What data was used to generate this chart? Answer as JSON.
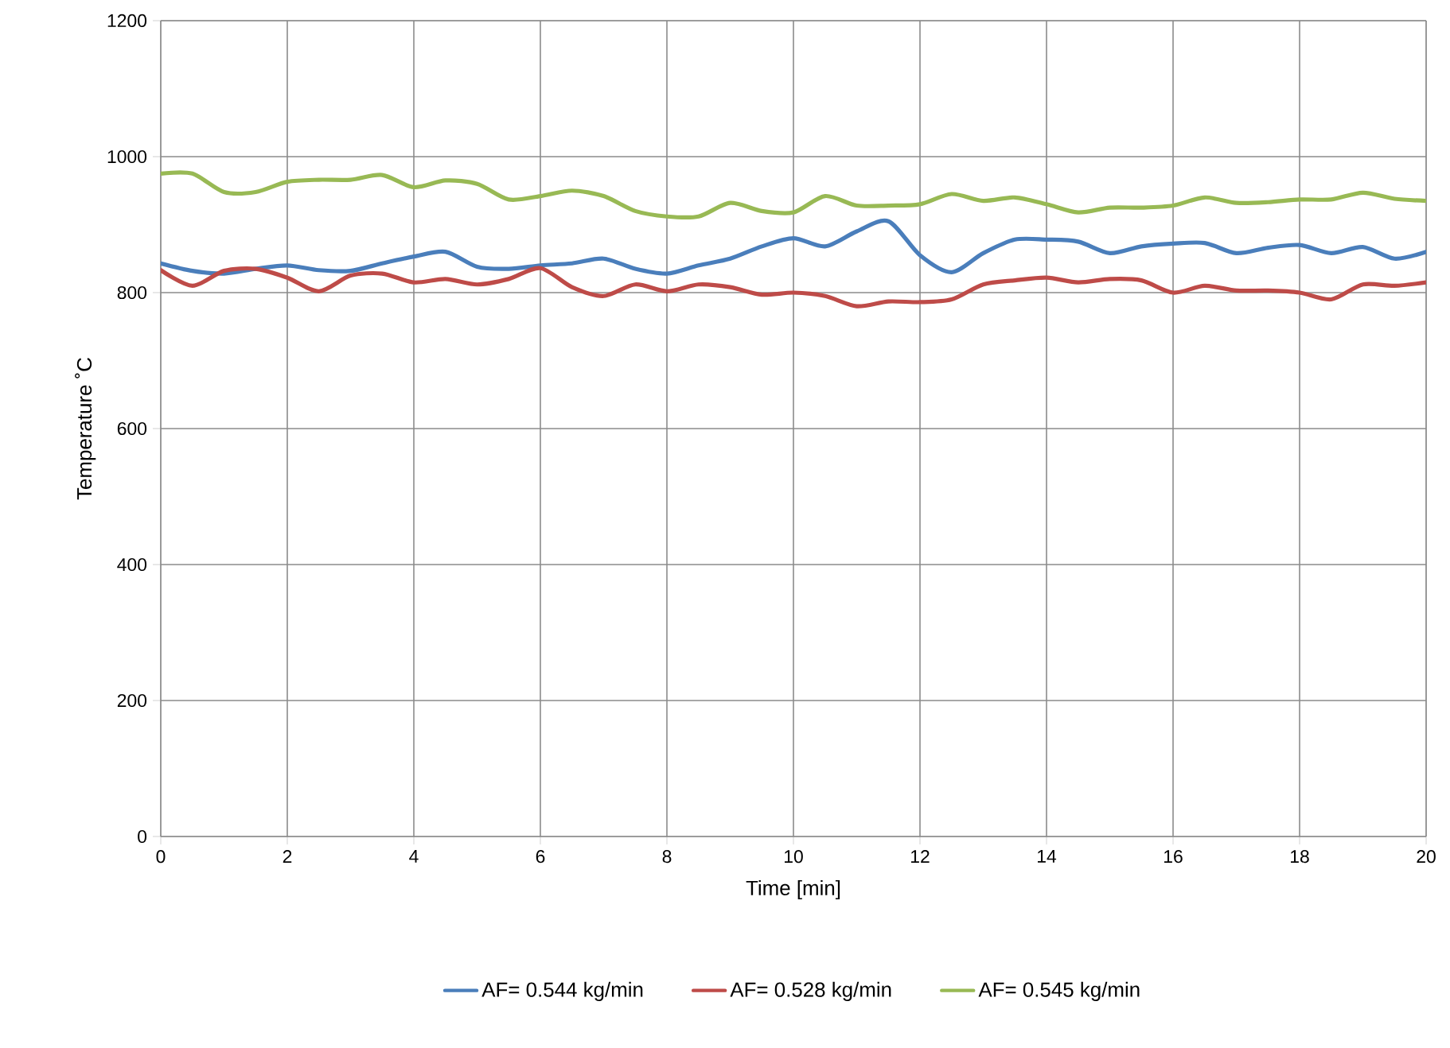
{
  "chart_data": {
    "type": "line",
    "xlabel": "Time [min]",
    "ylabel": "Temperature ˚C",
    "x": [
      0,
      0.5,
      1,
      1.5,
      2,
      2.5,
      3,
      3.5,
      4,
      4.5,
      5,
      5.5,
      6,
      6.5,
      7,
      7.5,
      8,
      8.5,
      9,
      9.5,
      10,
      10.5,
      11,
      11.5,
      12,
      12.5,
      13,
      13.5,
      14,
      14.5,
      15,
      15.5,
      16,
      16.5,
      17,
      17.5,
      18,
      18.5,
      19,
      19.5,
      20
    ],
    "series": [
      {
        "name": "AF= 0.544 kg/min",
        "color": "#4a7ebb",
        "values": [
          843,
          832,
          828,
          835,
          840,
          833,
          832,
          843,
          853,
          860,
          838,
          835,
          840,
          843,
          850,
          835,
          828,
          840,
          850,
          868,
          880,
          868,
          890,
          905,
          855,
          830,
          858,
          878,
          878,
          875,
          858,
          868,
          872,
          873,
          858,
          866,
          870,
          858,
          867,
          850,
          860
        ]
      },
      {
        "name": "AF= 0.528 kg/min",
        "color": "#be4b48",
        "values": [
          833,
          810,
          832,
          835,
          822,
          802,
          825,
          828,
          815,
          820,
          812,
          820,
          836,
          808,
          795,
          812,
          802,
          812,
          808,
          797,
          800,
          795,
          780,
          787,
          786,
          790,
          812,
          818,
          822,
          815,
          820,
          818,
          800,
          810,
          803,
          803,
          800,
          790,
          812,
          810,
          815
        ]
      },
      {
        "name": "AF= 0.545 kg/min",
        "color": "#98b954",
        "values": [
          975,
          975,
          948,
          948,
          963,
          966,
          966,
          973,
          955,
          965,
          960,
          937,
          942,
          950,
          942,
          920,
          912,
          912,
          932,
          920,
          918,
          942,
          928,
          928,
          930,
          945,
          935,
          940,
          930,
          918,
          925,
          925,
          928,
          940,
          932,
          933,
          937,
          937,
          947,
          938,
          935
        ]
      }
    ],
    "xlim": [
      0,
      20
    ],
    "xticks": [
      0,
      2,
      4,
      6,
      8,
      10,
      12,
      14,
      16,
      18,
      20
    ],
    "ylim": [
      0,
      1200
    ],
    "yticks": [
      0,
      200,
      400,
      600,
      800,
      1000,
      1200
    ],
    "grid": true,
    "legend": "bottom",
    "marker": "none",
    "line_style": "solid"
  }
}
